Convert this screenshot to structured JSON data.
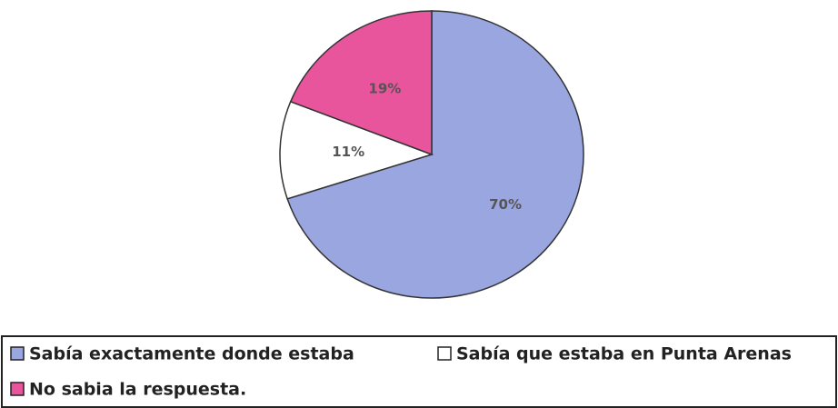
{
  "chart_data": {
    "type": "pie",
    "categories": [
      "Sabía exactamente donde estaba",
      "Sabía que estaba en Punta Arenas",
      "No sabia la respuesta."
    ],
    "values": [
      70,
      11,
      19
    ],
    "value_labels": [
      "70%",
      "11%",
      "19%"
    ],
    "colors": [
      "#9aa6e0",
      "#ffffff",
      "#e9559c"
    ],
    "legend": "bottom"
  }
}
